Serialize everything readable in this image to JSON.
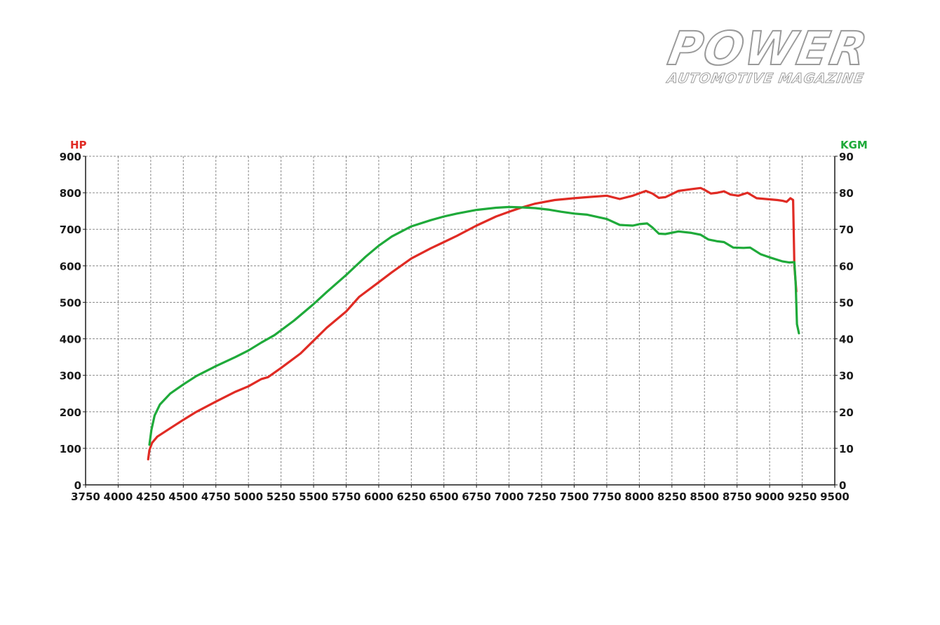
{
  "brand": {
    "wordmark": "POWER",
    "tagline": "AUTOMOTIVE MAGAZINE"
  },
  "colors": {
    "hp": "#e02b24",
    "torque": "#1faa3a",
    "grid": "#8a8a8a",
    "axis": "#1a1a1a",
    "logo": "#ffffff",
    "logo_shadow": "#9a9a9a"
  },
  "chart_data": {
    "type": "line",
    "title": "",
    "xlabel": "",
    "x_ticks": [
      "3750",
      "4000",
      "4250",
      "4500",
      "4750",
      "5000",
      "5250",
      "5500",
      "5750",
      "6000",
      "6250",
      "6500",
      "6750",
      "7000",
      "7250",
      "7500",
      "7750",
      "8000",
      "8250",
      "8500",
      "8750",
      "9000",
      "9250",
      "9500"
    ],
    "xlim": [
      3750,
      9500
    ],
    "y_left": {
      "label": "HP",
      "lim": [
        0,
        900
      ],
      "ticks": [
        "0",
        "100",
        "200",
        "300",
        "400",
        "500",
        "600",
        "700",
        "800",
        "900"
      ]
    },
    "y_right": {
      "label": "KGM",
      "lim": [
        0,
        90
      ],
      "ticks": [
        "0",
        "10",
        "20",
        "30",
        "40",
        "50",
        "60",
        "70",
        "80",
        "90"
      ]
    },
    "grid": true,
    "series": [
      {
        "axis": "left",
        "color": "#e02b24",
        "points": [
          [
            4230,
            70
          ],
          [
            4240,
            95
          ],
          [
            4260,
            115
          ],
          [
            4300,
            132
          ],
          [
            4400,
            155
          ],
          [
            4500,
            178
          ],
          [
            4600,
            200
          ],
          [
            4750,
            228
          ],
          [
            4900,
            255
          ],
          [
            5000,
            270
          ],
          [
            5100,
            290
          ],
          [
            5150,
            295
          ],
          [
            5250,
            320
          ],
          [
            5400,
            360
          ],
          [
            5500,
            395
          ],
          [
            5600,
            430
          ],
          [
            5750,
            475
          ],
          [
            5850,
            515
          ],
          [
            6000,
            555
          ],
          [
            6100,
            582
          ],
          [
            6250,
            620
          ],
          [
            6400,
            648
          ],
          [
            6500,
            665
          ],
          [
            6600,
            682
          ],
          [
            6750,
            710
          ],
          [
            6900,
            735
          ],
          [
            7000,
            748
          ],
          [
            7100,
            760
          ],
          [
            7200,
            770
          ],
          [
            7350,
            780
          ],
          [
            7500,
            785
          ],
          [
            7600,
            788
          ],
          [
            7750,
            792
          ],
          [
            7850,
            783
          ],
          [
            7950,
            792
          ],
          [
            8050,
            805
          ],
          [
            8100,
            798
          ],
          [
            8150,
            786
          ],
          [
            8200,
            788
          ],
          [
            8300,
            805
          ],
          [
            8400,
            810
          ],
          [
            8470,
            813
          ],
          [
            8500,
            808
          ],
          [
            8550,
            798
          ],
          [
            8600,
            800
          ],
          [
            8650,
            804
          ],
          [
            8700,
            795
          ],
          [
            8760,
            792
          ],
          [
            8830,
            800
          ],
          [
            8900,
            785
          ],
          [
            9000,
            782
          ],
          [
            9060,
            780
          ],
          [
            9100,
            778
          ],
          [
            9130,
            775
          ],
          [
            9160,
            785
          ],
          [
            9180,
            780
          ],
          [
            9190,
            600
          ],
          [
            9205,
            530
          ]
        ]
      },
      {
        "axis": "right",
        "color": "#1faa3a",
        "points": [
          [
            4240,
            11
          ],
          [
            4255,
            15
          ],
          [
            4280,
            19
          ],
          [
            4320,
            22
          ],
          [
            4400,
            25
          ],
          [
            4500,
            27.5
          ],
          [
            4600,
            29.8
          ],
          [
            4750,
            32.5
          ],
          [
            4900,
            35
          ],
          [
            5000,
            36.8
          ],
          [
            5100,
            39
          ],
          [
            5200,
            41
          ],
          [
            5350,
            45
          ],
          [
            5500,
            49.5
          ],
          [
            5600,
            52.8
          ],
          [
            5750,
            57.5
          ],
          [
            5900,
            62.5
          ],
          [
            6000,
            65.5
          ],
          [
            6100,
            68
          ],
          [
            6250,
            70.8
          ],
          [
            6400,
            72.5
          ],
          [
            6500,
            73.5
          ],
          [
            6600,
            74.3
          ],
          [
            6750,
            75.3
          ],
          [
            6900,
            75.9
          ],
          [
            7000,
            76.1
          ],
          [
            7100,
            76.0
          ],
          [
            7200,
            75.8
          ],
          [
            7300,
            75.4
          ],
          [
            7400,
            74.8
          ],
          [
            7500,
            74.3
          ],
          [
            7600,
            74
          ],
          [
            7750,
            72.8
          ],
          [
            7850,
            71.2
          ],
          [
            7950,
            71.0
          ],
          [
            8000,
            71.4
          ],
          [
            8060,
            71.6
          ],
          [
            8100,
            70.5
          ],
          [
            8150,
            68.8
          ],
          [
            8200,
            68.7
          ],
          [
            8300,
            69.4
          ],
          [
            8400,
            69.0
          ],
          [
            8470,
            68.5
          ],
          [
            8530,
            67.2
          ],
          [
            8600,
            66.7
          ],
          [
            8650,
            66.5
          ],
          [
            8720,
            65.0
          ],
          [
            8800,
            64.9
          ],
          [
            8850,
            65.0
          ],
          [
            8930,
            63.2
          ],
          [
            9000,
            62.3
          ],
          [
            9100,
            61.2
          ],
          [
            9150,
            60.9
          ],
          [
            9190,
            61.0
          ],
          [
            9200,
            55
          ],
          [
            9210,
            44
          ],
          [
            9225,
            41.5
          ]
        ]
      }
    ]
  }
}
